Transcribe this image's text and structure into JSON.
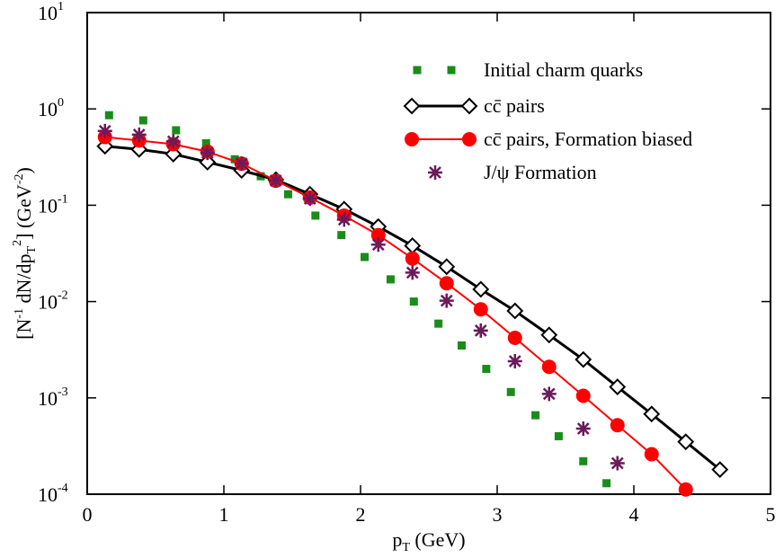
{
  "chart_data": {
    "type": "scatter",
    "x_label": {
      "parts": [
        "p",
        "T",
        " (GeV)"
      ]
    },
    "y_label": {
      "parts": [
        "[N",
        "-1",
        " dN/dp",
        "T",
        "2",
        "] (GeV",
        "-2",
        ")"
      ]
    },
    "xlim": [
      0,
      5
    ],
    "xticks": [
      0,
      1,
      2,
      3,
      4,
      5
    ],
    "ylim": [
      0.0001,
      10
    ],
    "log_y": true,
    "yticks": [
      {
        "value": 0.0001,
        "label": "10",
        "exponent": "-4"
      },
      {
        "value": 0.001,
        "label": "10",
        "exponent": "-3"
      },
      {
        "value": 0.01,
        "label": "10",
        "exponent": "-2"
      },
      {
        "value": 0.1,
        "label": "10",
        "exponent": "-1"
      },
      {
        "value": 1,
        "label": "10",
        "exponent": "0"
      },
      {
        "value": 10,
        "label": "10",
        "exponent": "1"
      }
    ],
    "legend": "upper right",
    "series": [
      {
        "name": "Initial charm quarks",
        "color": "#1a8c1a",
        "marker": "square",
        "line": false,
        "x": [
          0.16,
          0.41,
          0.65,
          0.87,
          1.08,
          1.27,
          1.47,
          1.67,
          1.86,
          2.03,
          2.22,
          2.39,
          2.57,
          2.74,
          2.92,
          3.1,
          3.28,
          3.45,
          3.63,
          3.8
        ],
        "values": [
          0.86,
          0.76,
          0.6,
          0.44,
          0.3,
          0.2,
          0.13,
          0.078,
          0.049,
          0.029,
          0.017,
          0.01,
          0.0059,
          0.0035,
          0.002,
          0.00115,
          0.00066,
          0.0004,
          0.00022,
          0.00013
        ]
      },
      {
        "name": "cc̄ pairs",
        "color": "#000000",
        "marker": "diamond",
        "line": true,
        "x": [
          0.13,
          0.38,
          0.63,
          0.88,
          1.13,
          1.38,
          1.63,
          1.88,
          2.13,
          2.38,
          2.63,
          2.88,
          3.13,
          3.38,
          3.63,
          3.88,
          4.13,
          4.38,
          4.63
        ],
        "values": [
          0.41,
          0.38,
          0.34,
          0.28,
          0.23,
          0.184,
          0.13,
          0.091,
          0.06,
          0.038,
          0.023,
          0.0134,
          0.008,
          0.0045,
          0.0025,
          0.0013,
          0.00068,
          0.00035,
          0.00018
        ]
      },
      {
        "name": "cc̄ pairs, Formation biased",
        "color": "#ff0000",
        "marker": "circle",
        "line": true,
        "x": [
          0.13,
          0.38,
          0.63,
          0.88,
          1.13,
          1.38,
          1.63,
          1.88,
          2.13,
          2.38,
          2.63,
          2.88,
          3.13,
          3.38,
          3.63,
          3.88,
          4.13,
          4.38
        ],
        "values": [
          0.51,
          0.47,
          0.43,
          0.36,
          0.27,
          0.18,
          0.12,
          0.078,
          0.049,
          0.028,
          0.0155,
          0.0083,
          0.0042,
          0.0021,
          0.00105,
          0.00052,
          0.00026,
          0.000112
        ]
      },
      {
        "name": "J/ψ Formation",
        "color": "#6b1a5a",
        "marker": "asterisk",
        "line": false,
        "x": [
          0.13,
          0.38,
          0.63,
          0.88,
          1.13,
          1.38,
          1.63,
          1.88,
          2.13,
          2.38,
          2.63,
          2.88,
          3.13,
          3.38,
          3.63,
          3.88
        ],
        "values": [
          0.59,
          0.54,
          0.46,
          0.35,
          0.27,
          0.18,
          0.117,
          0.071,
          0.039,
          0.02,
          0.0102,
          0.005,
          0.0024,
          0.0011,
          0.00048,
          0.00021
        ]
      }
    ]
  }
}
